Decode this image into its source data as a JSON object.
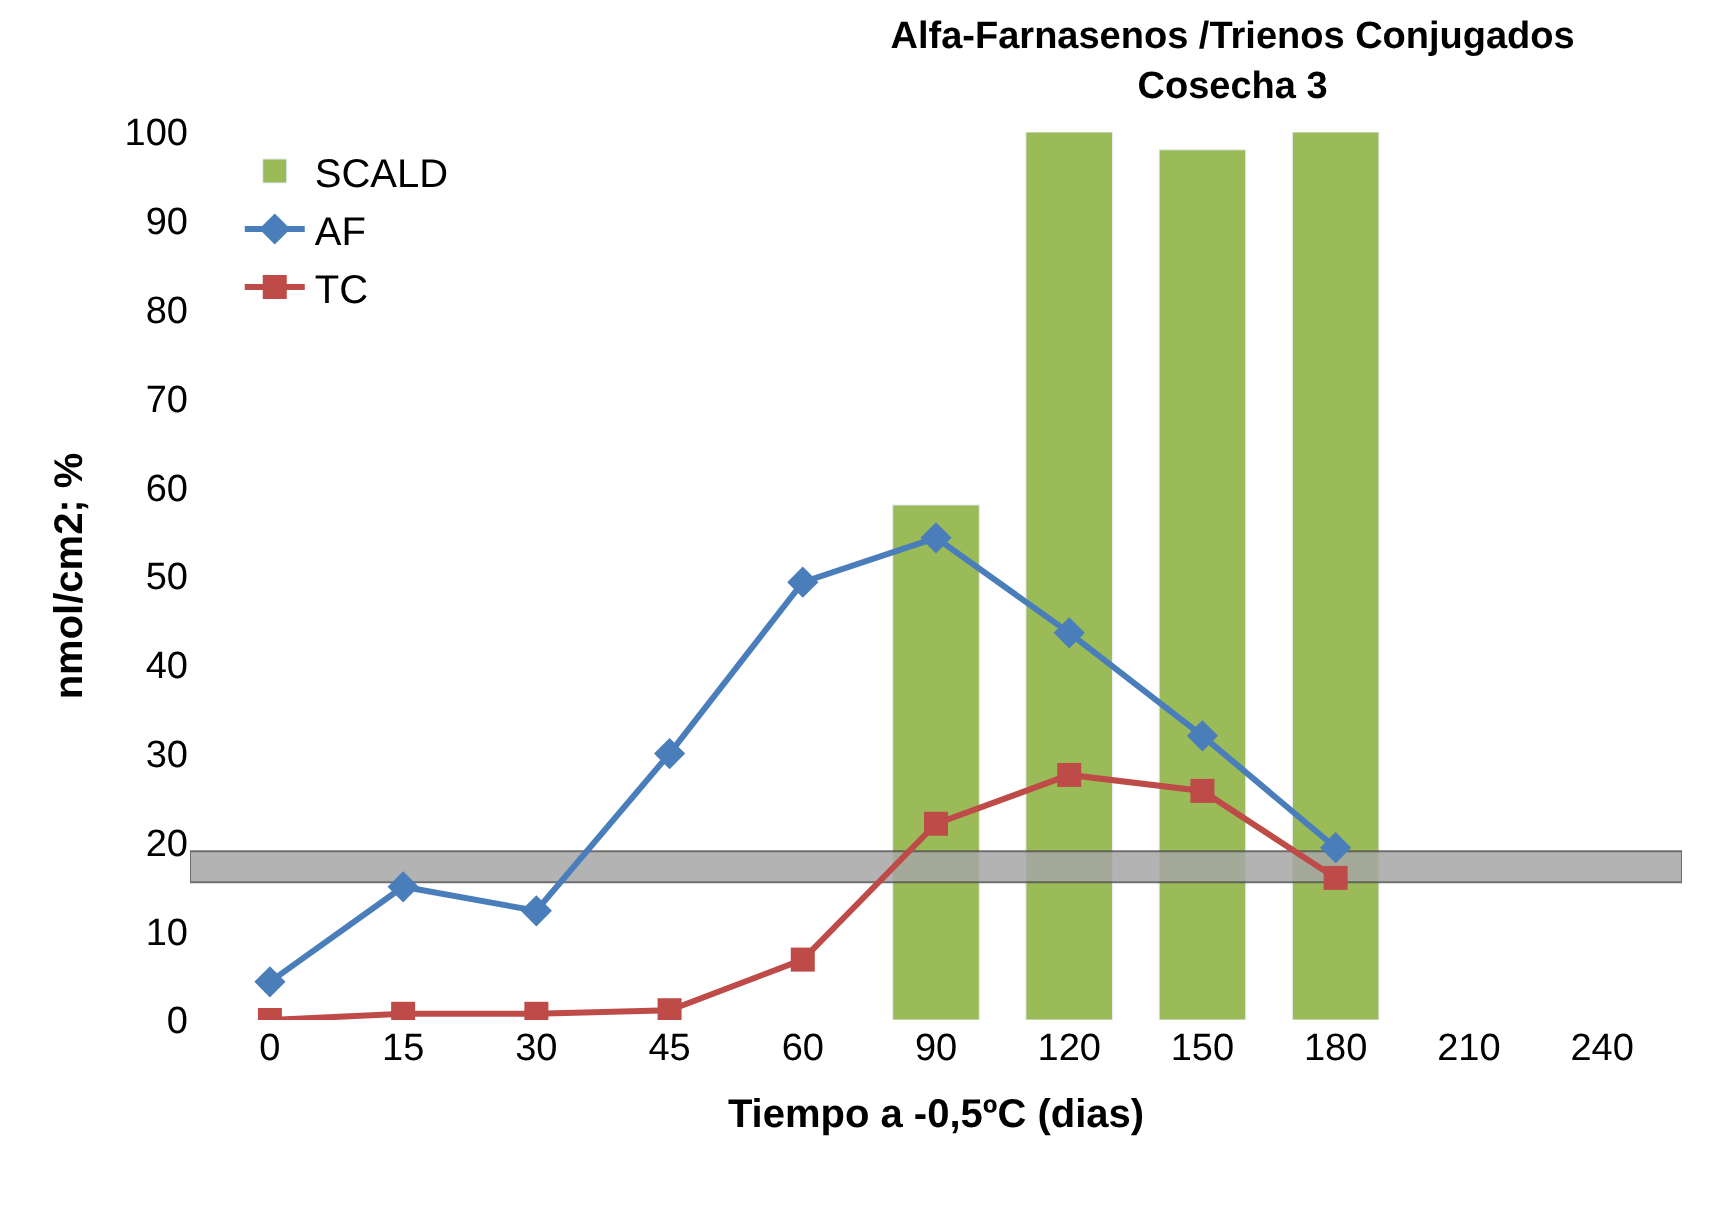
{
  "chart_data": {
    "type": "line",
    "title": "Alfa-Farnasenos /Trienos Conjugados\nCosecha 3",
    "xlabel": "Tiempo a -0,5ºC (dias)",
    "ylabel": "nmol/cm2; %",
    "categories": [
      "0",
      "15",
      "30",
      "45",
      "60",
      "90",
      "120",
      "150",
      "180",
      "210",
      "240"
    ],
    "series": [
      {
        "name": "SCALD",
        "type": "bar",
        "color": "#9bbb59",
        "values": [
          null,
          null,
          null,
          null,
          null,
          58,
          100,
          98,
          100,
          null,
          null
        ]
      },
      {
        "name": "AF",
        "color": "#4a7ebb",
        "marker": "diamond",
        "values": [
          4.3,
          15,
          12.3,
          30,
          49.3,
          54.3,
          43.6,
          32,
          19.4,
          null,
          null
        ]
      },
      {
        "name": "TC",
        "color": "#be4b48",
        "marker": "square",
        "values": [
          0,
          0.7,
          0.7,
          1.1,
          6.8,
          22.1,
          27.6,
          25.8,
          16,
          null,
          null
        ]
      }
    ],
    "ylim": [
      0,
      100
    ],
    "yticks": [
      0,
      10,
      20,
      30,
      40,
      50,
      60,
      70,
      80,
      90,
      100
    ],
    "bands": [
      {
        "axis": "y",
        "from": 15.5,
        "to": 19,
        "color": "#a6a6a6"
      }
    ],
    "legend": "top left"
  }
}
